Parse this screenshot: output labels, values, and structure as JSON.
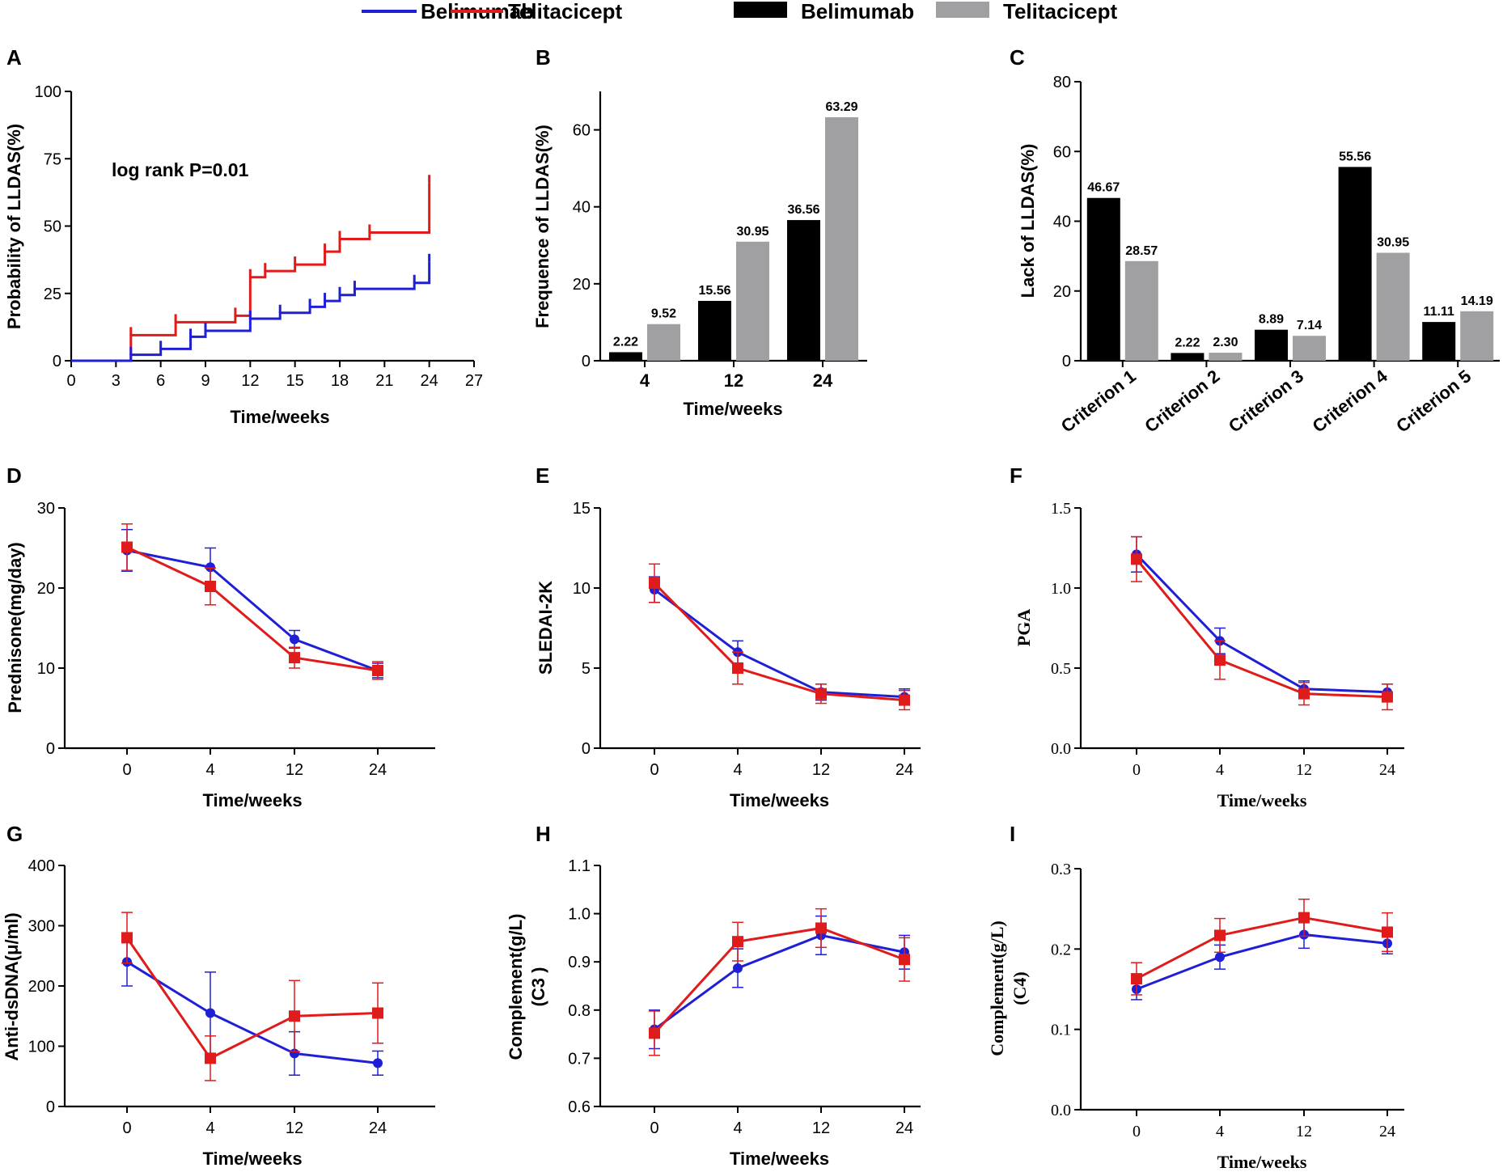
{
  "legend": {
    "items": [
      {
        "kind": "line",
        "label": "Belimumab",
        "color": "#1f1fd6"
      },
      {
        "kind": "line",
        "label": "Telitacicept",
        "color": "#e01b1b"
      },
      {
        "kind": "bar",
        "label": "Belimumab",
        "color": "#000000"
      },
      {
        "kind": "bar",
        "label": "Telitacicept",
        "color": "#a0a0a2"
      }
    ]
  },
  "colors": {
    "belimumab": "#1f1fd6",
    "telitacicept": "#e01b1b",
    "bar_belimumab": "#000000",
    "bar_telitacicept": "#a0a0a2"
  },
  "chart_data": [
    {
      "panel": "A",
      "type": "line",
      "subtype": "step",
      "xlabel": "Time/weeks",
      "ylabel": "Probability of LLDAS(%)",
      "xlim": [
        0,
        27
      ],
      "ylim": [
        0,
        100
      ],
      "xticks": [
        "0",
        "3",
        "6",
        "9",
        "12",
        "15",
        "18",
        "21",
        "24",
        "27"
      ],
      "yticks": [
        "0",
        "25",
        "50",
        "75",
        "100"
      ],
      "annotation": "log rank P=0.01",
      "series": [
        {
          "name": "Belimumab",
          "x": [
            0,
            4,
            6,
            8,
            9,
            12,
            14,
            16,
            17,
            18,
            19,
            23,
            24
          ],
          "y": [
            0,
            2.2,
            4.4,
            8.9,
            11.1,
            15.6,
            17.8,
            20,
            22.2,
            24.4,
            26.7,
            28.9,
            36.7
          ]
        },
        {
          "name": "Telitacicept",
          "x": [
            0,
            4,
            7,
            11,
            12,
            13,
            15,
            17,
            18,
            20,
            24
          ],
          "y": [
            0,
            9.5,
            14.3,
            16.7,
            31,
            33.3,
            35.7,
            40.5,
            45.2,
            47.6,
            66
          ]
        }
      ]
    },
    {
      "panel": "B",
      "type": "bar",
      "xlabel": "Time/weeks",
      "ylabel": "Frequence of LLDAS(%)",
      "ylim": [
        0,
        70
      ],
      "yticks": [
        "0",
        "20",
        "40",
        "60"
      ],
      "categories": [
        "4",
        "12",
        "24"
      ],
      "series": [
        {
          "name": "Belimumab",
          "values": [
            2.22,
            15.56,
            36.56
          ],
          "labels": [
            "2.22",
            "15.56",
            "36.56"
          ]
        },
        {
          "name": "Telitacicept",
          "values": [
            9.52,
            30.95,
            63.29
          ],
          "labels": [
            "9.52",
            "30.95",
            "63.29"
          ]
        }
      ]
    },
    {
      "panel": "C",
      "type": "bar",
      "xlabel": "",
      "ylabel": "Lack of LLDAS(%)",
      "ylim": [
        0,
        80
      ],
      "yticks": [
        "0",
        "20",
        "40",
        "60",
        "80"
      ],
      "categories": [
        "Criterion 1",
        "Criterion 2",
        "Criterion 3",
        "Criterion 4",
        "Criterion 5"
      ],
      "series": [
        {
          "name": "Belimumab",
          "values": [
            46.67,
            2.22,
            8.89,
            55.56,
            11.11
          ],
          "labels": [
            "46.67",
            "2.22",
            "8.89",
            "55.56",
            "11.11"
          ]
        },
        {
          "name": "Telitacicept",
          "values": [
            28.57,
            2.3,
            7.14,
            30.95,
            14.19
          ],
          "labels": [
            "28.57",
            "2.30",
            "7.14",
            "30.95",
            "14.19"
          ]
        }
      ]
    },
    {
      "panel": "D",
      "type": "line",
      "xlabel": "Time/weeks",
      "ylabel": "Prednisone(mg/day)",
      "categories": [
        "0",
        "4",
        "12",
        "24"
      ],
      "ylim": [
        0,
        30
      ],
      "yticks": [
        "0",
        "10",
        "20",
        "30"
      ],
      "series": [
        {
          "name": "Belimumab",
          "values": [
            24.7,
            22.6,
            13.6,
            9.7
          ],
          "err": [
            2.6,
            2.4,
            1.1,
            0.9
          ]
        },
        {
          "name": "Telitacicept",
          "values": [
            25.1,
            20.2,
            11.3,
            9.7
          ],
          "err": [
            2.9,
            2.3,
            1.3,
            1.1
          ]
        }
      ]
    },
    {
      "panel": "E",
      "type": "line",
      "xlabel": "Time/weeks",
      "ylabel": "SLEDAI-2K",
      "categories": [
        "0",
        "4",
        "12",
        "24"
      ],
      "ylim": [
        0,
        15
      ],
      "yticks": [
        "0",
        "5",
        "10",
        "15"
      ],
      "series": [
        {
          "name": "Belimumab",
          "values": [
            9.9,
            6.0,
            3.5,
            3.2
          ],
          "err": [
            0.8,
            0.7,
            0.5,
            0.5
          ]
        },
        {
          "name": "Telitacicept",
          "values": [
            10.3,
            5.0,
            3.4,
            3.0
          ],
          "err": [
            1.2,
            1.0,
            0.6,
            0.6
          ]
        }
      ]
    },
    {
      "panel": "F",
      "type": "line",
      "xlabel": "Time/weeks",
      "ylabel": "PGA",
      "categories": [
        "0",
        "4",
        "12",
        "24"
      ],
      "ylim": [
        0,
        1.5
      ],
      "yticks": [
        "0.0",
        "0.5",
        "1.0",
        "1.5"
      ],
      "series": [
        {
          "name": "Belimumab",
          "values": [
            1.21,
            0.67,
            0.37,
            0.35
          ],
          "err": [
            0.11,
            0.08,
            0.05,
            0.05
          ]
        },
        {
          "name": "Telitacicept",
          "values": [
            1.18,
            0.55,
            0.34,
            0.32
          ],
          "err": [
            0.14,
            0.12,
            0.07,
            0.08
          ]
        }
      ]
    },
    {
      "panel": "G",
      "type": "line",
      "xlabel": "Time/weeks",
      "ylabel": "Anti-dsDNA(μ/ml)",
      "categories": [
        "0",
        "4",
        "12",
        "24"
      ],
      "ylim": [
        0,
        400
      ],
      "yticks": [
        "0",
        "100",
        "200",
        "300",
        "400"
      ],
      "series": [
        {
          "name": "Belimumab",
          "values": [
            240,
            155,
            88,
            72
          ],
          "err": [
            40,
            68,
            36,
            20
          ]
        },
        {
          "name": "Telitacicept",
          "values": [
            280,
            80,
            150,
            155
          ],
          "err": [
            42,
            37,
            59,
            50
          ]
        }
      ]
    },
    {
      "panel": "H",
      "type": "line",
      "xlabel": "Time/weeks",
      "ylabel": "Complement(g/L)",
      "ylabel2": "(C3 )",
      "categories": [
        "0",
        "4",
        "12",
        "24"
      ],
      "ylim": [
        0.6,
        1.1
      ],
      "yticks": [
        "0.6",
        "0.7",
        "0.8",
        "0.9",
        "1.0",
        "1.1"
      ],
      "series": [
        {
          "name": "Belimumab",
          "values": [
            0.76,
            0.887,
            0.955,
            0.92
          ],
          "err": [
            0.04,
            0.04,
            0.04,
            0.035
          ]
        },
        {
          "name": "Telitacicept",
          "values": [
            0.752,
            0.942,
            0.97,
            0.905
          ],
          "err": [
            0.046,
            0.04,
            0.04,
            0.045
          ]
        }
      ]
    },
    {
      "panel": "I",
      "type": "line",
      "xlabel": "Time/weeks",
      "ylabel": "Complement(g/L)",
      "ylabel2": "(C4)",
      "categories": [
        "0",
        "4",
        "12",
        "24"
      ],
      "ylim": [
        0,
        0.3
      ],
      "yticks": [
        "0.0",
        "0.1",
        "0.2",
        "0.3"
      ],
      "series": [
        {
          "name": "Belimumab",
          "values": [
            0.15,
            0.19,
            0.218,
            0.207
          ],
          "err": [
            0.013,
            0.015,
            0.017,
            0.013
          ]
        },
        {
          "name": "Telitacicept",
          "values": [
            0.163,
            0.217,
            0.239,
            0.221
          ],
          "err": [
            0.02,
            0.021,
            0.023,
            0.024
          ]
        }
      ]
    }
  ]
}
